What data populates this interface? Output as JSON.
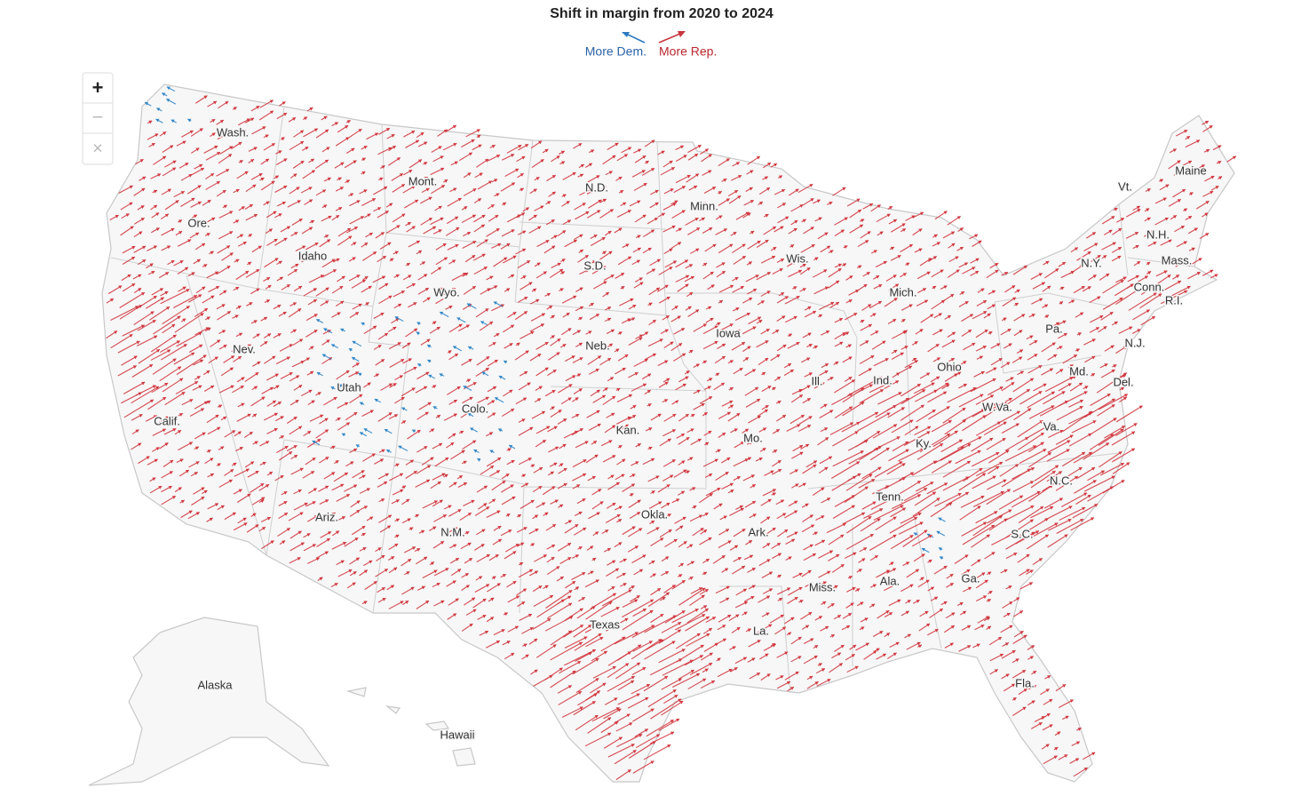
{
  "title": "Shift in margin from 2020 to 2024",
  "legend": {
    "dem": "More Dem.",
    "rep": "More Rep."
  },
  "zoom": {
    "in": "+",
    "out": "−",
    "reset": "×"
  },
  "states": [
    "Wash.",
    "Mont.",
    "N.D.",
    "Minn.",
    "Ore.",
    "Idaho",
    "Wyo.",
    "S.D.",
    "Wis.",
    "Mich.",
    "Vt.",
    "Maine",
    "N.H.",
    "N.Y.",
    "Mass.",
    "Conn.",
    "R.I.",
    "Pa.",
    "N.J.",
    "Nev.",
    "Utah",
    "Colo.",
    "Neb.",
    "Iowa",
    "Ill.",
    "Ind.",
    "Ohio",
    "Md.",
    "Del.",
    "W.Va.",
    "Va.",
    "Ky.",
    "Calif.",
    "Kan.",
    "Mo.",
    "N.C.",
    "Tenn.",
    "Okla.",
    "Ariz.",
    "N.M.",
    "Ark.",
    "S.C.",
    "Miss.",
    "Ala.",
    "Ga.",
    "Texas",
    "La.",
    "Fla.",
    "Alaska",
    "Hawaii"
  ]
}
